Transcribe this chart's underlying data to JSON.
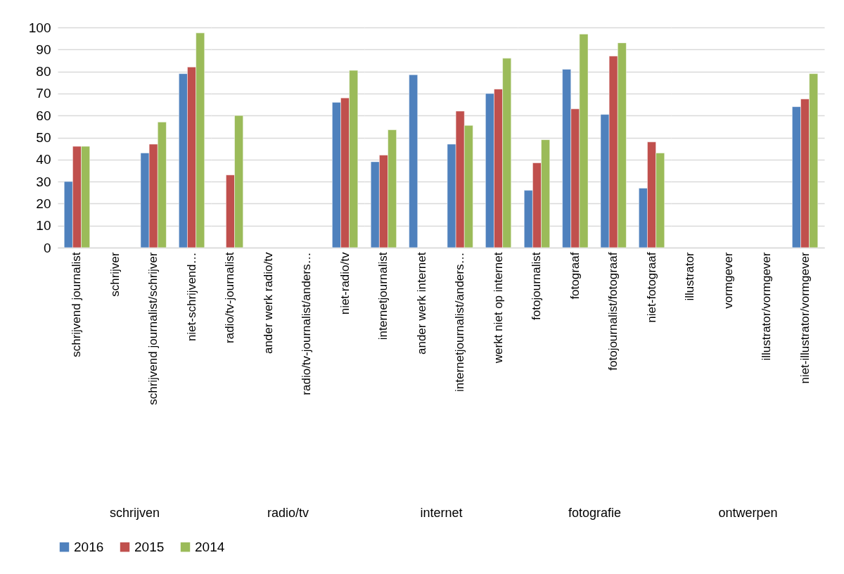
{
  "chart_data": [
    {
      "type": "bar",
      "xlabel": "schrijven",
      "categories": [
        "schrijvend journalist",
        "schrijver",
        "schrijvend journalist/schrijver",
        "niet-schrijvend…"
      ],
      "series": [
        {
          "name": "2016",
          "color": "#4f81bd",
          "values": [
            30,
            null,
            43,
            79
          ]
        },
        {
          "name": "2015",
          "color": "#c0504d",
          "values": [
            46,
            null,
            47,
            82
          ]
        },
        {
          "name": "2014",
          "color": "#9bbb59",
          "values": [
            46,
            null,
            57,
            97.5
          ]
        }
      ],
      "ylim": [
        0,
        100
      ],
      "yticks": [
        0,
        10,
        20,
        30,
        40,
        50,
        60,
        70,
        80,
        90,
        100
      ],
      "grid": "y",
      "legend": "bottom"
    },
    {
      "type": "bar",
      "xlabel": "radio/tv",
      "categories": [
        "radio/tv-journalist",
        "ander werk radio/tv",
        "radio/tv-journalist/anders…",
        "niet-radio/tv"
      ],
      "series": [
        {
          "name": "2016",
          "color": "#4f81bd",
          "values": [
            null,
            null,
            null,
            66
          ]
        },
        {
          "name": "2015",
          "color": "#c0504d",
          "values": [
            33,
            null,
            null,
            68
          ]
        },
        {
          "name": "2014",
          "color": "#9bbb59",
          "values": [
            60,
            null,
            null,
            80.5
          ]
        }
      ],
      "ylim": [
        0,
        100
      ],
      "yticks": [
        0,
        10,
        20,
        30,
        40,
        50,
        60,
        70,
        80,
        90,
        100
      ],
      "grid": "y",
      "tick_labels": "x"
    },
    {
      "type": "bar",
      "xlabel": "internet",
      "categories": [
        "internetjournalist",
        "ander werk internet",
        "internetjournalist/anders…",
        "werkt niet op internet"
      ],
      "series": [
        {
          "name": "2016",
          "color": "#4f81bd",
          "values": [
            39,
            78.5,
            47,
            70
          ]
        },
        {
          "name": "2015",
          "color": "#c0504d",
          "values": [
            42,
            null,
            62,
            72
          ]
        },
        {
          "name": "2014",
          "color": "#9bbb59",
          "values": [
            53.5,
            null,
            55.5,
            86
          ]
        }
      ],
      "ylim": [
        0,
        100
      ],
      "yticks": [
        0,
        10,
        20,
        30,
        40,
        50,
        60,
        70,
        80,
        90,
        100
      ],
      "grid": "y",
      "tick_labels": "x"
    },
    {
      "type": "bar",
      "xlabel": "fotografie",
      "categories": [
        "fotojournalist",
        "fotograaf",
        "fotojournalist/fotograaf",
        "niet-fotograaf"
      ],
      "series": [
        {
          "name": "2016",
          "color": "#4f81bd",
          "values": [
            26,
            81,
            60.5,
            27
          ]
        },
        {
          "name": "2015",
          "color": "#c0504d",
          "values": [
            38.5,
            63,
            87,
            48
          ]
        },
        {
          "name": "2014",
          "color": "#9bbb59",
          "values": [
            49,
            97,
            93,
            43
          ]
        }
      ],
      "ylim": [
        0,
        100
      ],
      "yticks": [
        0,
        10,
        20,
        30,
        40,
        50,
        60,
        70,
        80,
        90,
        100
      ],
      "grid": "y",
      "tick_labels": "x"
    },
    {
      "type": "bar",
      "xlabel": "ontwerpen",
      "categories": [
        "illustrator",
        "vormgever",
        "illustrator/vormgever",
        "niet-illustrator/vormgever"
      ],
      "series": [
        {
          "name": "2016",
          "color": "#4f81bd",
          "values": [
            null,
            null,
            null,
            64
          ]
        },
        {
          "name": "2015",
          "color": "#c0504d",
          "values": [
            null,
            null,
            null,
            67.5
          ]
        },
        {
          "name": "2014",
          "color": "#9bbb59",
          "values": [
            null,
            null,
            null,
            79
          ]
        }
      ],
      "ylim": [
        0,
        100
      ],
      "yticks": [
        0,
        10,
        20,
        30,
        40,
        50,
        60,
        70,
        80,
        90,
        100
      ],
      "grid": "y",
      "tick_labels": "x"
    }
  ]
}
